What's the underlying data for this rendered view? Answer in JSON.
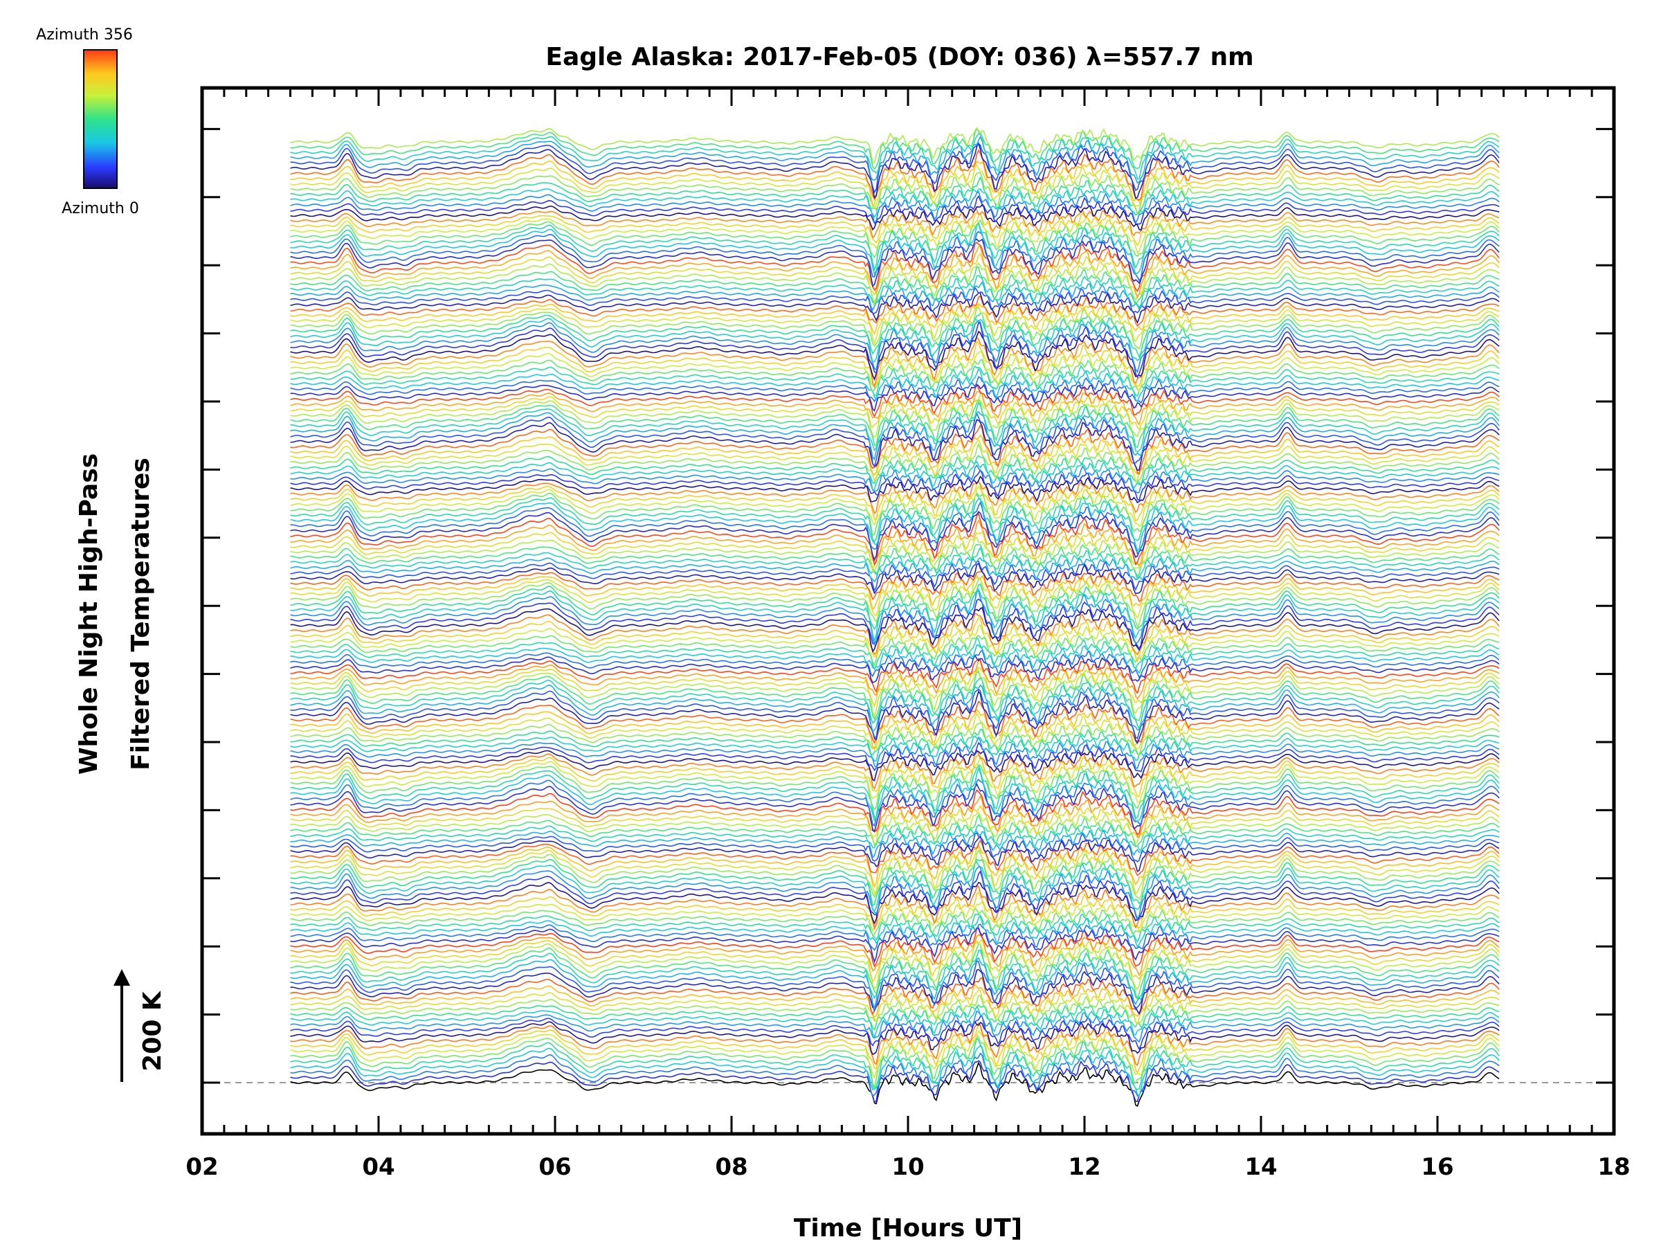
{
  "chart_data": {
    "type": "line",
    "title": "Eagle Alaska: 2017-Feb-05 (DOY: 036) λ=557.7 nm",
    "xlabel": "Time [Hours UT]",
    "ylabel_line1": "Whole Night High-Pass",
    "ylabel_line2": "Filtered Temperatures",
    "xlim": [
      2,
      18
    ],
    "x_tick_labels": [
      "02",
      "04",
      "06",
      "08",
      "10",
      "12",
      "14",
      "16",
      "18"
    ],
    "data_time_range": [
      3.0,
      16.7
    ],
    "scale_bar": {
      "label": "200 K",
      "value_K": 200
    },
    "colorbar": {
      "top_label": "Azimuth 356",
      "bottom_label": "Azimuth 0",
      "colormap": "rainbow",
      "azimuth_range": [
        0,
        356
      ]
    },
    "n_series": 180,
    "series_note": "stacked filtered temperature traces, one per azimuth bin, colored by azimuth",
    "baseline_style": "dashed gray",
    "grid": false
  }
}
